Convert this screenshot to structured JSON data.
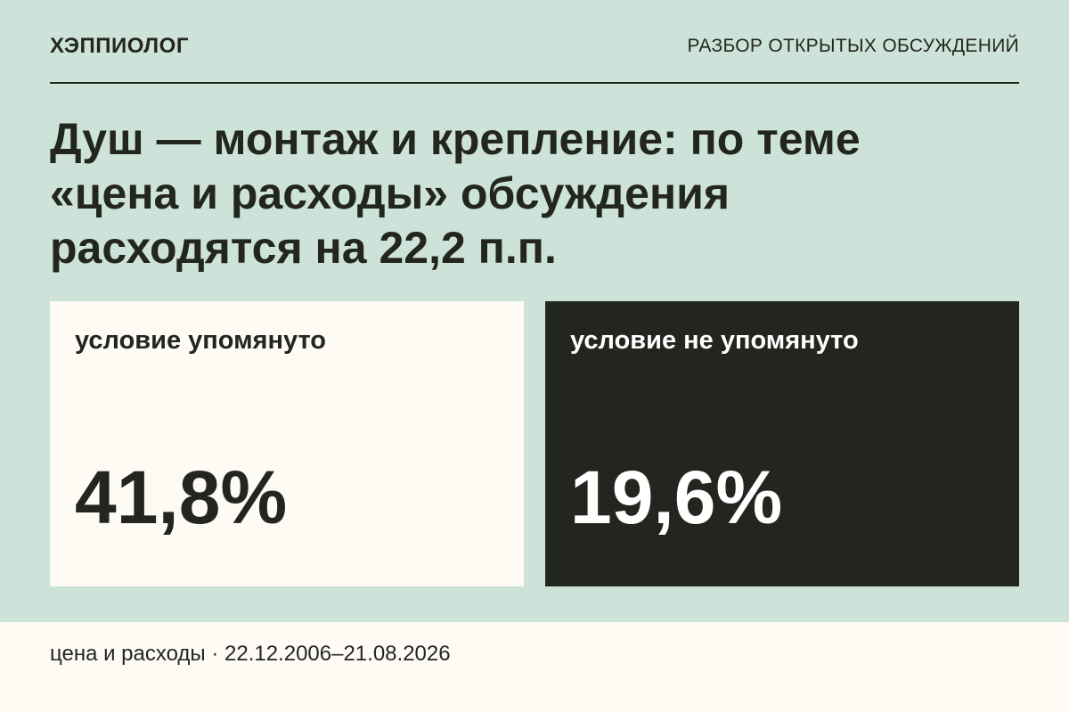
{
  "header": {
    "brand": "ХЭППИОЛОГ",
    "section": "РАЗБОР ОТКРЫТЫХ ОБСУЖДЕНИЙ"
  },
  "headline": "Душ — монтаж и крепление: по теме «цена и расходы» обсуждения расходятся на 22,2 п.п.",
  "cards": [
    {
      "label": "условие упомянуто",
      "value": "41,8%"
    },
    {
      "label": "условие не упомянуто",
      "value": "19,6%"
    }
  ],
  "footer": "цена и расходы · 22.12.2006–21.08.2026"
}
